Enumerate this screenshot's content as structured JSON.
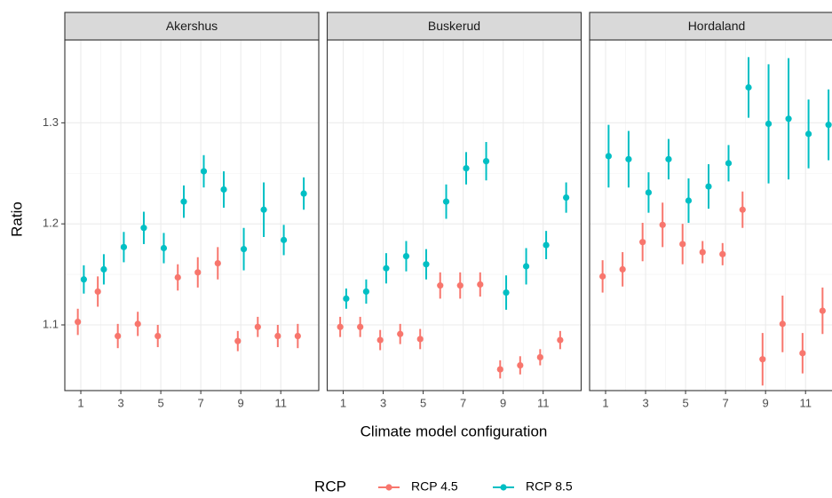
{
  "chart_data": [
    {
      "type": "errorbar",
      "title": "Akershus",
      "x": [
        1,
        2,
        3,
        4,
        5,
        6,
        7,
        8,
        9,
        10,
        11,
        12
      ],
      "xlim": [
        0.2,
        12.9
      ],
      "xticks": [
        1,
        3,
        5,
        7,
        9,
        11
      ],
      "ylim": [
        1.035,
        1.382
      ],
      "yticks": [
        1.1,
        1.2,
        1.3
      ],
      "grid": true,
      "series": [
        {
          "name": "RCP 4.5",
          "color": "#F8766D",
          "values": [
            1.103,
            1.133,
            1.089,
            1.101,
            1.089,
            1.147,
            1.152,
            1.161,
            1.084,
            1.098,
            1.089,
            1.089
          ],
          "errors": [
            0.013,
            0.015,
            0.012,
            0.012,
            0.011,
            0.013,
            0.015,
            0.016,
            0.01,
            0.01,
            0.011,
            0.012
          ]
        },
        {
          "name": "RCP 8.5",
          "color": "#00BFC4",
          "values": [
            1.145,
            1.155,
            1.177,
            1.196,
            1.176,
            1.222,
            1.252,
            1.234,
            1.175,
            1.214,
            1.184,
            1.23
          ],
          "errors": [
            0.014,
            0.015,
            0.015,
            0.016,
            0.015,
            0.016,
            0.016,
            0.018,
            0.021,
            0.027,
            0.015,
            0.016
          ]
        }
      ]
    },
    {
      "type": "errorbar",
      "title": "Buskerud",
      "x": [
        1,
        2,
        3,
        4,
        5,
        6,
        7,
        8,
        9,
        10,
        11,
        12
      ],
      "xlim": [
        0.2,
        12.9
      ],
      "xticks": [
        1,
        3,
        5,
        7,
        9,
        11
      ],
      "ylim": [
        1.035,
        1.382
      ],
      "yticks": [
        1.1,
        1.2,
        1.3
      ],
      "grid": true,
      "series": [
        {
          "name": "RCP 4.5",
          "color": "#F8766D",
          "values": [
            1.098,
            1.098,
            1.085,
            1.091,
            1.086,
            1.139,
            1.139,
            1.14,
            1.056,
            1.06,
            1.068,
            1.085
          ],
          "errors": [
            0.01,
            0.01,
            0.01,
            0.01,
            0.01,
            0.013,
            0.013,
            0.012,
            0.009,
            0.009,
            0.008,
            0.009
          ]
        },
        {
          "name": "RCP 8.5",
          "color": "#00BFC4",
          "values": [
            1.126,
            1.133,
            1.156,
            1.168,
            1.16,
            1.222,
            1.255,
            1.262,
            1.132,
            1.158,
            1.179,
            1.226
          ],
          "errors": [
            0.01,
            0.012,
            0.015,
            0.015,
            0.015,
            0.017,
            0.016,
            0.019,
            0.017,
            0.018,
            0.014,
            0.015
          ]
        }
      ]
    },
    {
      "type": "errorbar",
      "title": "Hordaland",
      "x": [
        1,
        2,
        3,
        4,
        5,
        6,
        7,
        8,
        9,
        10,
        11,
        12
      ],
      "xlim": [
        0.2,
        12.9
      ],
      "xticks": [
        1,
        3,
        5,
        7,
        9,
        11
      ],
      "ylim": [
        1.035,
        1.382
      ],
      "yticks": [
        1.1,
        1.2,
        1.3
      ],
      "grid": true,
      "series": [
        {
          "name": "RCP 4.5",
          "color": "#F8766D",
          "values": [
            1.148,
            1.155,
            1.182,
            1.199,
            1.18,
            1.172,
            1.17,
            1.214,
            1.066,
            1.101,
            1.072,
            1.114
          ],
          "errors": [
            0.016,
            0.017,
            0.019,
            0.022,
            0.02,
            0.011,
            0.011,
            0.018,
            0.026,
            0.028,
            0.02,
            0.023
          ]
        },
        {
          "name": "RCP 8.5",
          "color": "#00BFC4",
          "values": [
            1.267,
            1.264,
            1.231,
            1.264,
            1.223,
            1.237,
            1.26,
            1.335,
            1.299,
            1.304,
            1.289,
            1.298
          ],
          "errors": [
            0.031,
            0.028,
            0.02,
            0.02,
            0.022,
            0.022,
            0.018,
            0.03,
            0.059,
            0.06,
            0.034,
            0.035
          ]
        }
      ]
    }
  ],
  "x_label": "Climate model configuration",
  "y_label": "Ratio",
  "legend_title": "RCP"
}
